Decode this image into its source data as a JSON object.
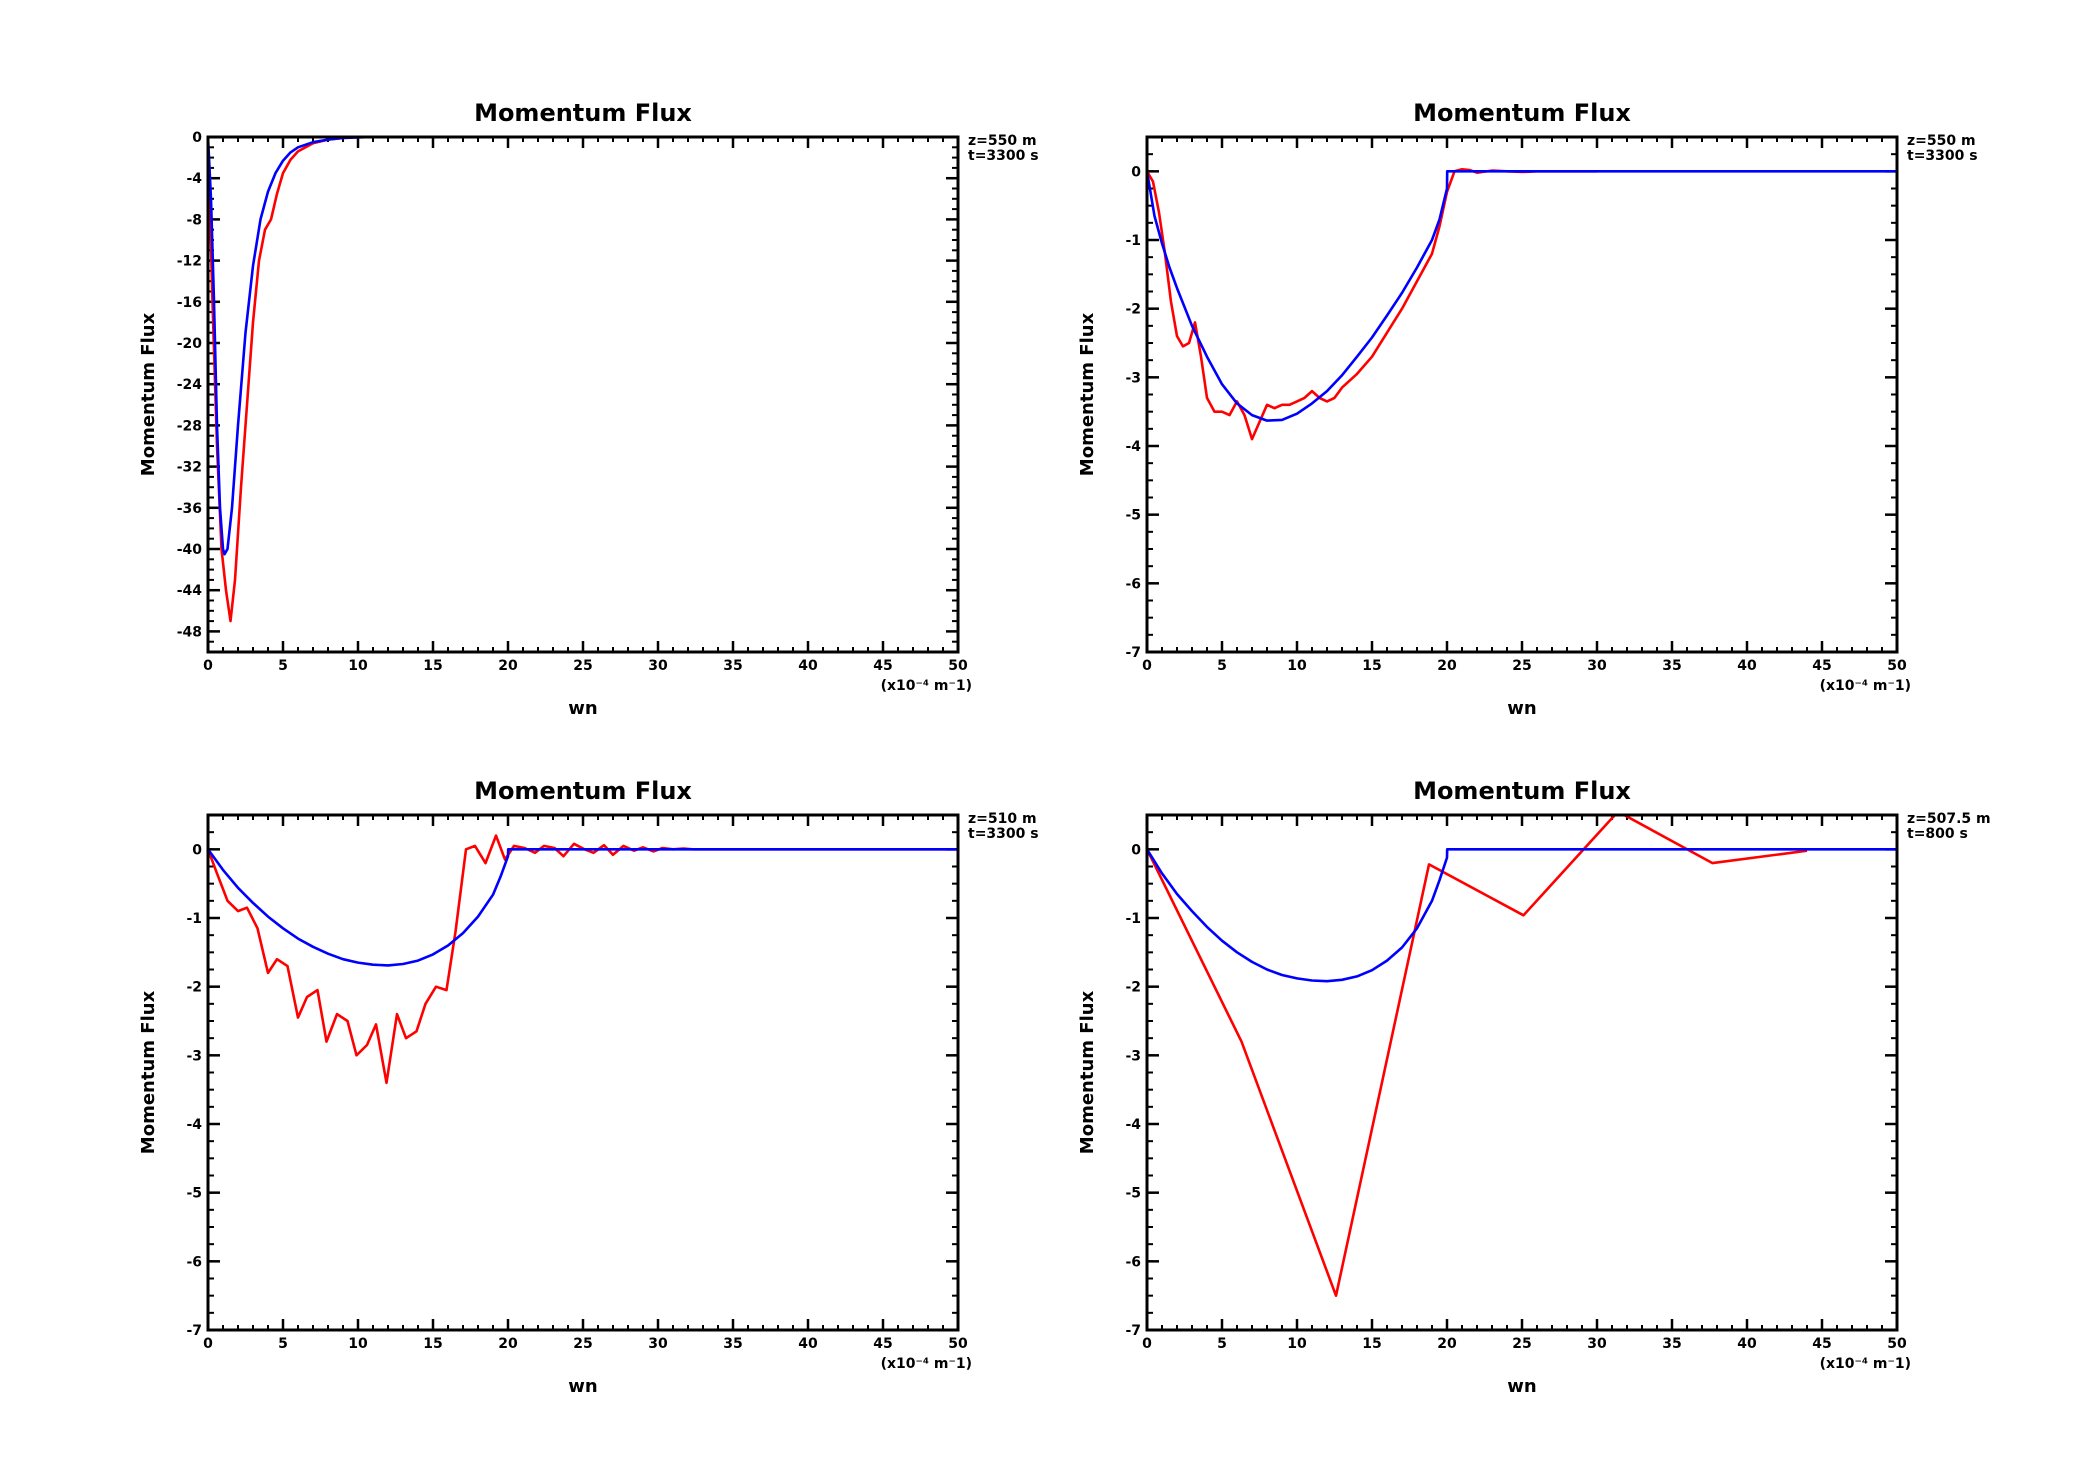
{
  "chart_data": [
    {
      "type": "line",
      "title": "Momentum Flux",
      "xlabel": "wn",
      "ylabel": "Momentum Flux",
      "x_unit": "(x10⁻⁴ m⁻1)",
      "annotation": [
        "z=550 m",
        "t=3300 s"
      ],
      "xlim": [
        0,
        50
      ],
      "ylim": [
        -50,
        0
      ],
      "xticks": [
        0,
        5,
        10,
        15,
        20,
        25,
        30,
        35,
        40,
        45,
        50
      ],
      "xtick_labels": [
        "0",
        "5",
        "10",
        "15",
        "20",
        "25",
        "30",
        "35",
        "40",
        "45",
        "50"
      ],
      "yticks": [
        0,
        -4,
        -8,
        -12,
        -16,
        -20,
        -24,
        -28,
        -32,
        -36,
        -40,
        -44,
        -48
      ],
      "ytick_labels": [
        "0",
        "-4",
        "-8",
        "-12",
        "-16",
        "-20",
        "-24",
        "-28",
        "-32",
        "-36",
        "-40",
        "-44",
        "-48"
      ],
      "series": [
        {
          "color": "#ff0000",
          "x": [
            0,
            0.3,
            0.6,
            0.9,
            1.2,
            1.5,
            1.8,
            2.2,
            2.6,
            3.0,
            3.4,
            3.8,
            4.2,
            4.6,
            5.0,
            5.5,
            6,
            7,
            8,
            9,
            10,
            50
          ],
          "y": [
            0,
            -16,
            -30,
            -40,
            -44,
            -47,
            -43,
            -34,
            -26,
            -18,
            -12,
            -9,
            -8,
            -5.5,
            -3.5,
            -2.2,
            -1.4,
            -0.6,
            -0.25,
            -0.1,
            0,
            0
          ]
        },
        {
          "color": "#0000ff",
          "x": [
            0,
            0.2,
            0.4,
            0.6,
            0.8,
            1.0,
            1.1,
            1.3,
            1.6,
            2.0,
            2.5,
            3.0,
            3.5,
            4.0,
            4.5,
            5.0,
            5.5,
            6.0,
            7.0,
            8.0,
            9.0,
            10.0,
            11,
            12,
            50
          ],
          "y": [
            0,
            -6,
            -16,
            -28,
            -36,
            -40,
            -40.5,
            -40,
            -36,
            -28,
            -19,
            -12.5,
            -8,
            -5.3,
            -3.5,
            -2.3,
            -1.5,
            -1,
            -0.5,
            -0.25,
            -0.1,
            -0.05,
            0,
            0,
            0
          ]
        }
      ]
    },
    {
      "type": "line",
      "title": "Momentum Flux",
      "xlabel": "wn",
      "ylabel": "Momentum Flux",
      "x_unit": "(x10⁻⁴ m⁻1)",
      "annotation": [
        "z=550 m",
        "t=3300 s"
      ],
      "xlim": [
        0,
        50
      ],
      "ylim": [
        -7,
        0.5
      ],
      "xticks": [
        0,
        5,
        10,
        15,
        20,
        25,
        30,
        35,
        40,
        45,
        50
      ],
      "xtick_labels": [
        "0",
        "5",
        "10",
        "15",
        "20",
        "25",
        "30",
        "35",
        "40",
        "45",
        "50"
      ],
      "yticks": [
        0,
        -1,
        -2,
        -3,
        -4,
        -5,
        -6,
        -7
      ],
      "ytick_labels": [
        "0",
        "-1",
        "-2",
        "-3",
        "-4",
        "-5",
        "-6",
        "-7"
      ],
      "series": [
        {
          "color": "#ff0000",
          "x": [
            0,
            0.4,
            0.8,
            1.2,
            1.6,
            2.0,
            2.4,
            2.8,
            3.2,
            3.6,
            4.0,
            4.5,
            5.0,
            5.5,
            6.0,
            6.5,
            7.0,
            7.5,
            8.0,
            8.5,
            9.0,
            9.5,
            10.0,
            10.5,
            11.0,
            11.5,
            12.0,
            12.5,
            13.0,
            14.0,
            15,
            16,
            17,
            18,
            19,
            19.5,
            20,
            20.5,
            21,
            21.5,
            22,
            23,
            24,
            25,
            26,
            28,
            30
          ],
          "y": [
            0,
            -0.15,
            -0.6,
            -1.2,
            -1.9,
            -2.4,
            -2.55,
            -2.5,
            -2.2,
            -2.7,
            -3.3,
            -3.5,
            -3.5,
            -3.55,
            -3.35,
            -3.55,
            -3.9,
            -3.65,
            -3.4,
            -3.45,
            -3.4,
            -3.4,
            -3.35,
            -3.3,
            -3.2,
            -3.3,
            -3.35,
            -3.3,
            -3.15,
            -2.95,
            -2.7,
            -2.35,
            -2.0,
            -1.6,
            -1.2,
            -0.8,
            -0.3,
            0,
            0.03,
            0.02,
            -0.02,
            0.01,
            0,
            -0.01,
            0,
            0,
            0
          ]
        },
        {
          "color": "#0000ff",
          "x": [
            0,
            0.5,
            1,
            1.5,
            2,
            3,
            4,
            5,
            6,
            7,
            8,
            9,
            10,
            11,
            12,
            13,
            14,
            15,
            16,
            17,
            18,
            19,
            19.5,
            20,
            20.01,
            25,
            30,
            35,
            40,
            45,
            50
          ],
          "y": [
            0,
            -0.65,
            -1.05,
            -1.4,
            -1.7,
            -2.25,
            -2.7,
            -3.1,
            -3.38,
            -3.55,
            -3.63,
            -3.62,
            -3.53,
            -3.38,
            -3.2,
            -2.97,
            -2.7,
            -2.42,
            -2.1,
            -1.77,
            -1.4,
            -1.0,
            -0.7,
            -0.25,
            0,
            0,
            0,
            0,
            0,
            0,
            0
          ]
        }
      ]
    },
    {
      "type": "line",
      "title": "Momentum Flux",
      "xlabel": "wn",
      "ylabel": "Momentum Flux",
      "x_unit": "(x10⁻⁴ m⁻1)",
      "annotation": [
        "z=510 m",
        "t=3300 s"
      ],
      "xlim": [
        0,
        50
      ],
      "ylim": [
        -7,
        0.5
      ],
      "xticks": [
        0,
        5,
        10,
        15,
        20,
        25,
        30,
        35,
        40,
        45,
        50
      ],
      "xtick_labels": [
        "0",
        "5",
        "10",
        "15",
        "20",
        "25",
        "30",
        "35",
        "40",
        "45",
        "50"
      ],
      "yticks": [
        0,
        -1,
        -2,
        -3,
        -4,
        -5,
        -6,
        -7
      ],
      "ytick_labels": [
        "0",
        "-1",
        "-2",
        "-3",
        "-4",
        "-5",
        "-6",
        "-7"
      ],
      "series": [
        {
          "color": "#ff0000",
          "x": [
            0,
            0.6,
            1.3,
            2.0,
            2.6,
            3.3,
            4.0,
            4.6,
            5.3,
            6.0,
            6.6,
            7.3,
            7.9,
            8.6,
            9.3,
            9.9,
            10.6,
            11.2,
            11.9,
            12.6,
            13.2,
            13.9,
            14.5,
            15.2,
            15.9,
            16.5,
            17.2,
            17.8,
            18.5,
            19.2,
            19.8,
            20.4,
            21.1,
            21.8,
            22.4,
            23.1,
            23.7,
            24.4,
            25.1,
            25.7,
            26.4,
            27,
            27.7,
            28.4,
            29,
            29.7,
            30.3,
            31,
            31.7,
            32.3,
            33,
            34,
            36,
            38,
            40,
            42,
            44,
            46,
            48,
            50
          ],
          "y": [
            0,
            -0.35,
            -0.75,
            -0.9,
            -0.85,
            -1.15,
            -1.8,
            -1.6,
            -1.7,
            -2.45,
            -2.15,
            -2.05,
            -2.8,
            -2.4,
            -2.5,
            -3.0,
            -2.85,
            -2.55,
            -3.4,
            -2.4,
            -2.75,
            -2.65,
            -2.25,
            -2.0,
            -2.05,
            -1.2,
            0.0,
            0.05,
            -0.2,
            0.2,
            -0.15,
            0.05,
            0.02,
            -0.05,
            0.05,
            0.02,
            -0.1,
            0.08,
            0.0,
            -0.05,
            0.06,
            -0.08,
            0.05,
            -0.02,
            0.03,
            -0.03,
            0.02,
            0,
            0.01,
            0,
            0,
            0,
            0,
            0,
            0,
            0,
            0,
            0,
            0,
            0
          ]
        },
        {
          "color": "#0000ff",
          "x": [
            0,
            1,
            2,
            3,
            4,
            5,
            6,
            7,
            8,
            9,
            10,
            11,
            12,
            13,
            14,
            15,
            16,
            17,
            18,
            19,
            19.5,
            20,
            20.01,
            25,
            30,
            35,
            40,
            45,
            50
          ],
          "y": [
            0,
            -0.3,
            -0.56,
            -0.78,
            -0.98,
            -1.15,
            -1.3,
            -1.42,
            -1.52,
            -1.6,
            -1.65,
            -1.68,
            -1.69,
            -1.67,
            -1.62,
            -1.53,
            -1.4,
            -1.22,
            -0.98,
            -0.66,
            -0.4,
            -0.1,
            0,
            0,
            0,
            0,
            0,
            0,
            0
          ]
        }
      ]
    },
    {
      "type": "line",
      "title": "Momentum Flux",
      "xlabel": "wn",
      "ylabel": "Momentum Flux",
      "x_unit": "(x10⁻⁴ m⁻1)",
      "annotation": [
        "z=507.5 m",
        "t=800 s"
      ],
      "xlim": [
        0,
        50
      ],
      "ylim": [
        -7,
        0.5
      ],
      "xticks": [
        0,
        5,
        10,
        15,
        20,
        25,
        30,
        35,
        40,
        45,
        50
      ],
      "xtick_labels": [
        "0",
        "5",
        "10",
        "15",
        "20",
        "25",
        "30",
        "35",
        "40",
        "45",
        "50"
      ],
      "yticks": [
        0,
        -1,
        -2,
        -3,
        -4,
        -5,
        -6,
        -7
      ],
      "ytick_labels": [
        "0",
        "-1",
        "-2",
        "-3",
        "-4",
        "-5",
        "-6",
        "-7"
      ],
      "series": [
        {
          "color": "#ff0000",
          "x": [
            0,
            6.3,
            12.6,
            18.8,
            25.1,
            31.4,
            37.7,
            44.0
          ],
          "y": [
            0,
            -2.8,
            -6.5,
            -0.22,
            -0.96,
            0.55,
            -0.2,
            -0.02
          ]
        },
        {
          "color": "#0000ff",
          "x": [
            0,
            1,
            2,
            3,
            4,
            5,
            6,
            7,
            8,
            9,
            10,
            11,
            12,
            13,
            14,
            15,
            16,
            17,
            18,
            19,
            19.5,
            20,
            20.01,
            25,
            30,
            35,
            40,
            45,
            50
          ],
          "y": [
            0,
            -0.35,
            -0.65,
            -0.9,
            -1.13,
            -1.33,
            -1.5,
            -1.64,
            -1.75,
            -1.83,
            -1.88,
            -1.91,
            -1.92,
            -1.9,
            -1.85,
            -1.76,
            -1.62,
            -1.43,
            -1.15,
            -0.75,
            -0.45,
            -0.12,
            0,
            0,
            0,
            0,
            0,
            0,
            0
          ]
        }
      ]
    }
  ]
}
